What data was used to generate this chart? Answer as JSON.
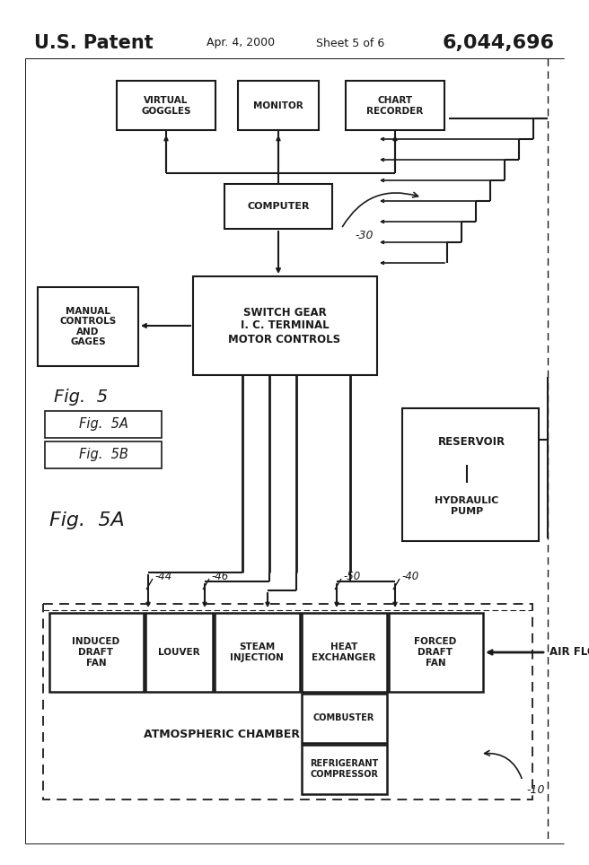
{
  "title_left": "U.S. Patent",
  "title_center": "Apr. 4, 2000",
  "title_sheet": "Sheet 5 of 6",
  "title_right": "6,044,696",
  "bg_color": "#ffffff",
  "line_color": "#1a1a1a",
  "fig_label": "Fig.  5",
  "fig_5a_label": "Fig.  5A",
  "fig_5b_label": "Fig.  5B",
  "fig_5a_big": "Fig.  5A",
  "note_30": "-30",
  "note_10": "-10",
  "note_44": "-44",
  "note_46": "-46",
  "note_50": "-50",
  "note_40": "-40"
}
